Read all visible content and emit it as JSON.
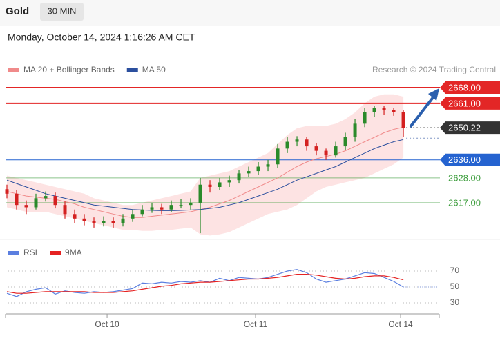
{
  "header": {
    "symbol": "Gold",
    "interval": "30 MIN",
    "timestamp": "Monday, October 14, 2024 1:16:26 AM CET"
  },
  "chart_data": [
    {
      "type": "candlestick",
      "credit": "Research © 2024 Trading Central",
      "xlim": [
        0,
        44.71
      ],
      "ylim": [
        2602,
        2676
      ],
      "up_color": "#2a8a2a",
      "down_color": "#d42020",
      "ohlc": {
        "open": [
          2623,
          2621,
          2616,
          2615,
          2619,
          2620,
          2616,
          2612,
          2610,
          2609,
          2608,
          2609,
          2608,
          2610,
          2612,
          2614,
          2615,
          2614,
          2616,
          2616,
          2617,
          2625,
          2624,
          2626,
          2627,
          2630,
          2631,
          2633,
          2634,
          2641,
          2644,
          2645,
          2642,
          2640,
          2638,
          2642,
          2646,
          2652,
          2657,
          2659,
          2658,
          2657
        ],
        "high": [
          2625,
          2622.5,
          2618,
          2621,
          2622,
          2621.5,
          2617.5,
          2614,
          2612,
          2610.5,
          2611,
          2610.5,
          2612,
          2614,
          2616,
          2617,
          2616.5,
          2618,
          2618.5,
          2619,
          2628,
          2627,
          2628,
          2629,
          2631.5,
          2633,
          2635,
          2636,
          2643,
          2646,
          2646.5,
          2646,
          2643.5,
          2641,
          2644,
          2648,
          2654,
          2659,
          2660,
          2660,
          2659,
          2658
        ],
        "low": [
          2619,
          2614,
          2612,
          2614,
          2617.5,
          2614.5,
          2610,
          2608,
          2607,
          2606,
          2606.5,
          2606,
          2606.5,
          2608.5,
          2611,
          2612.5,
          2612,
          2613,
          2614.5,
          2614,
          2603.5,
          2621.5,
          2622.5,
          2624,
          2625.5,
          2628.5,
          2629.5,
          2631,
          2632.5,
          2639,
          2642,
          2640,
          2638,
          2636,
          2637,
          2640.5,
          2644,
          2650.5,
          2655,
          2656,
          2655.5,
          2646
        ],
        "close": [
          2621,
          2616,
          2615,
          2619,
          2620,
          2616,
          2612,
          2610,
          2609,
          2608,
          2609,
          2608,
          2610,
          2612,
          2614,
          2615,
          2614,
          2616,
          2616,
          2617,
          2625,
          2624,
          2626,
          2627,
          2630,
          2631,
          2633,
          2634,
          2641,
          2644,
          2645,
          2642,
          2640,
          2638,
          2642,
          2646,
          2652,
          2657,
          2659,
          2658,
          2657,
          2650
        ]
      },
      "series": [
        {
          "name": "MA 20 + Bollinger Bands",
          "color": "#f08a8a",
          "band_color": "#fde3e3",
          "values": [
            2622,
            2621,
            2620,
            2619.5,
            2619,
            2618.5,
            2617.5,
            2616.5,
            2615,
            2614,
            2613,
            2612,
            2611,
            2610.5,
            2610.5,
            2611,
            2611.5,
            2612,
            2612.5,
            2613,
            2614,
            2615,
            2616.5,
            2618,
            2620,
            2622,
            2624,
            2626,
            2628,
            2630.5,
            2633,
            2635,
            2636.5,
            2637.5,
            2638.5,
            2640,
            2642,
            2644,
            2646,
            2648,
            2649.5,
            2650.5
          ],
          "upper": [
            2629,
            2628,
            2627,
            2626,
            2625,
            2624,
            2623,
            2622,
            2621,
            2619,
            2618,
            2617,
            2616,
            2616,
            2617,
            2618,
            2619,
            2620,
            2621,
            2622,
            2628,
            2629,
            2630,
            2631,
            2633,
            2635,
            2637,
            2639,
            2643,
            2647,
            2650,
            2651,
            2651,
            2651,
            2652,
            2654,
            2657,
            2661,
            2664,
            2665,
            2665,
            2664
          ],
          "lower": [
            2615,
            2614,
            2613,
            2613,
            2613,
            2612,
            2611,
            2610,
            2609,
            2608,
            2607,
            2606,
            2605,
            2605,
            2604.5,
            2604.5,
            2605,
            2605,
            2605.5,
            2606,
            2603,
            2602.5,
            2603,
            2604,
            2606,
            2608,
            2610,
            2612,
            2613,
            2614,
            2616,
            2619,
            2622,
            2624,
            2625,
            2626,
            2627,
            2628,
            2630,
            2632,
            2634,
            2637
          ]
        },
        {
          "name": "MA 50",
          "color": "#2b4f9e",
          "values": [
            2627,
            2625.5,
            2624,
            2622.5,
            2621,
            2620,
            2619,
            2618,
            2617,
            2616,
            2615.5,
            2615,
            2614.5,
            2614,
            2613.8,
            2613.6,
            2613.5,
            2613.5,
            2613.6,
            2613.8,
            2614,
            2614.5,
            2615,
            2616,
            2617,
            2618.5,
            2620,
            2621.5,
            2623,
            2625,
            2627,
            2628.5,
            2630,
            2631.5,
            2633,
            2635,
            2637,
            2639,
            2641,
            2642.5,
            2644,
            2645
          ]
        }
      ],
      "levels": [
        {
          "value": 2668,
          "label": "2668.00",
          "color": "#e32626",
          "style": "tag",
          "line": "solid"
        },
        {
          "value": 2661,
          "label": "2661.00",
          "color": "#e32626",
          "style": "tag",
          "line": "solid"
        },
        {
          "value": 2650.22,
          "label": "2650.22",
          "color": "#333333",
          "style": "tag",
          "line": "dotted"
        },
        {
          "value": 2636,
          "label": "2636.00",
          "color": "#2563d0",
          "style": "tag",
          "line": "solid"
        },
        {
          "value": 2628,
          "label": "2628.00",
          "color": "#3e9e3e",
          "style": "text",
          "line": "solid"
        },
        {
          "value": 2617,
          "label": "2617.00",
          "color": "#3e9e3e",
          "style": "text",
          "line": "solid"
        }
      ]
    },
    {
      "type": "line",
      "xlim": [
        0,
        44.71
      ],
      "ylim": [
        19,
        81
      ],
      "yticks": [
        70,
        50,
        30
      ],
      "grid": true,
      "xticks": [
        {
          "value": 10.36,
          "label": "Oct 10"
        },
        {
          "value": 25.71,
          "label": "Oct 11"
        },
        {
          "value": 40.71,
          "label": "Oct 14"
        }
      ],
      "series": [
        {
          "name": "RSI",
          "color": "#5b7fe0",
          "values": [
            42,
            38,
            44,
            47,
            49,
            41,
            45,
            43,
            42,
            44,
            43,
            44,
            46,
            48,
            55,
            54,
            56,
            55,
            57,
            56,
            58,
            56,
            61,
            58,
            62,
            61,
            60,
            62,
            66,
            70,
            72,
            68,
            60,
            56,
            58,
            60,
            64,
            68,
            67,
            62,
            57,
            50
          ]
        },
        {
          "name": "9MA",
          "color": "#e52222",
          "values": [
            44,
            42,
            42,
            43,
            44,
            44,
            44,
            44,
            44,
            43,
            43,
            43,
            44,
            45,
            47,
            49,
            51,
            52,
            54,
            55,
            56,
            56,
            57,
            58,
            59,
            60,
            60,
            61,
            62,
            64,
            66,
            66,
            65,
            63,
            61,
            60,
            61,
            63,
            64,
            64,
            62,
            59
          ]
        }
      ]
    }
  ]
}
